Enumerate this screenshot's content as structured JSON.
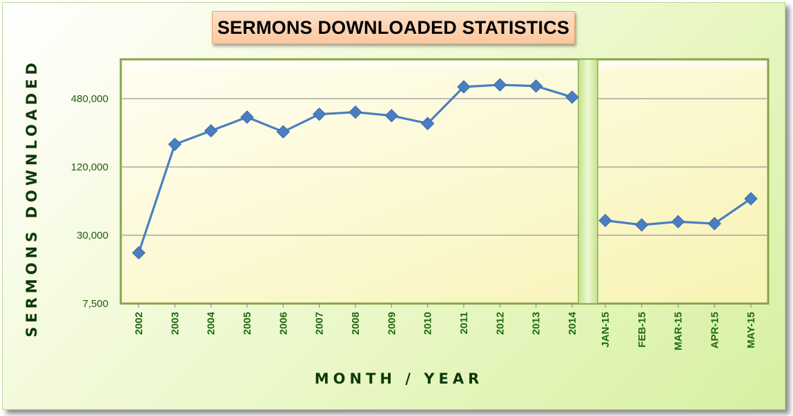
{
  "chart_data": {
    "type": "line",
    "title": "SERMONS DOWNLOADED STATISTICS",
    "xlabel": "MONTH / YEAR",
    "ylabel": "SERMONS DOWNLOADED",
    "y_scale": "log",
    "ylim": [
      7500,
      960000
    ],
    "y_ticks": [
      7500,
      30000,
      120000,
      480000
    ],
    "y_tick_labels": [
      "7,500",
      "30,000",
      "120,000",
      "480,000"
    ],
    "grid": true,
    "series_color": "#4a7ec2",
    "categories": [
      "2002",
      "2003",
      "2004",
      "2005",
      "2006",
      "2007",
      "2008",
      "2009",
      "2010",
      "2011",
      "2012",
      "2013",
      "2014",
      "JAN-15",
      "FEB-15",
      "MAR-15",
      "APR-15",
      "MAY-15"
    ],
    "panels": [
      {
        "categories": [
          "2002",
          "2003",
          "2004",
          "2005",
          "2006",
          "2007",
          "2008",
          "2009",
          "2010",
          "2011",
          "2012",
          "2013",
          "2014"
        ],
        "values": [
          21000,
          190000,
          250000,
          330000,
          245000,
          350000,
          365000,
          340000,
          290000,
          610000,
          635000,
          620000,
          495000
        ]
      },
      {
        "categories": [
          "JAN-15",
          "FEB-15",
          "MAR-15",
          "APR-15",
          "MAY-15"
        ],
        "values": [
          40500,
          37000,
          39500,
          38000,
          63000
        ]
      }
    ]
  }
}
